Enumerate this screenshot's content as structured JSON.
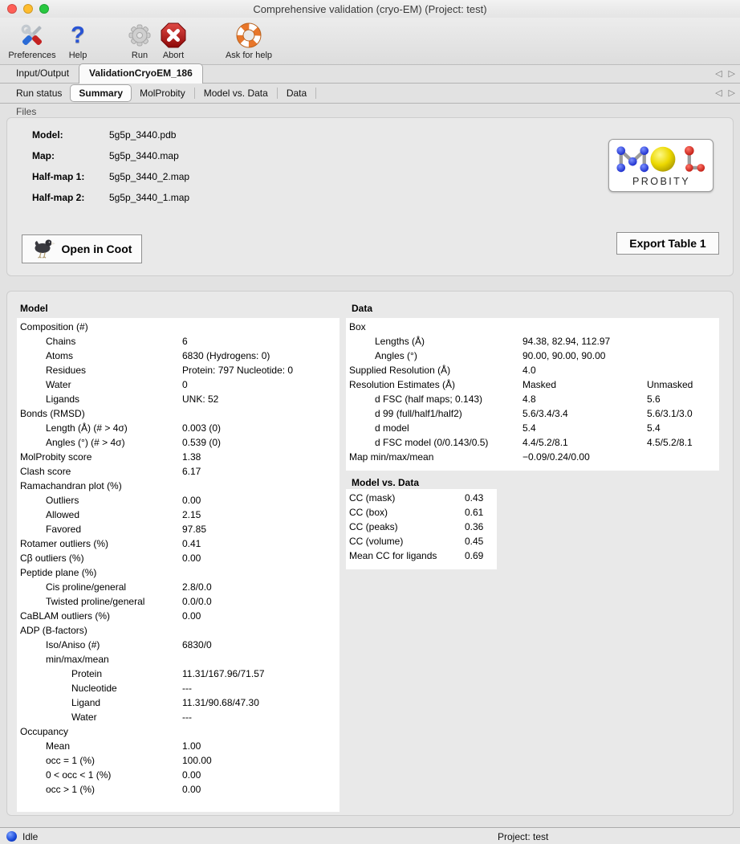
{
  "window": {
    "title": "Comprehensive validation (cryo-EM) (Project: test)"
  },
  "toolbar": {
    "items": [
      {
        "label": "Preferences",
        "icon": "tools-icon"
      },
      {
        "label": "Help",
        "icon": "question-mark-icon"
      },
      {
        "label": "Run",
        "icon": "gear-icon",
        "enabled": false
      },
      {
        "label": "Abort",
        "icon": "stop-x-icon"
      },
      {
        "label": "Ask for help",
        "icon": "lifebuoy-icon"
      }
    ]
  },
  "main_tabs": [
    {
      "label": "Input/Output",
      "selected": false
    },
    {
      "label": "ValidationCryoEM_186",
      "selected": true
    }
  ],
  "sub_tabs": [
    {
      "label": "Run status",
      "selected": false
    },
    {
      "label": "Summary",
      "selected": true
    },
    {
      "label": "MolProbity",
      "selected": false
    },
    {
      "label": "Model vs. Data",
      "selected": false
    },
    {
      "label": "Data",
      "selected": false
    }
  ],
  "tab_scroll": {
    "left": "◁",
    "right": "▷"
  },
  "files": {
    "label": "Files",
    "rows": [
      {
        "label": "Model:",
        "value": "5g5p_3440.pdb"
      },
      {
        "label": "Map:",
        "value": "5g5p_3440.map"
      },
      {
        "label": "Half-map 1:",
        "value": "5g5p_3440_2.map"
      },
      {
        "label": "Half-map 2:",
        "value": "5g5p_3440_1.map"
      }
    ],
    "open_in_coot_label": "Open in Coot",
    "export_table_label": "Export Table 1",
    "molprobity_logo_text": "PROBITY"
  },
  "model_section": {
    "title": "Model",
    "rows": [
      {
        "indent": 0,
        "label": "Composition (#)"
      },
      {
        "indent": 1,
        "label": "Chains",
        "value": "6"
      },
      {
        "indent": 1,
        "label": "Atoms",
        "value": "6830 (Hydrogens: 0)"
      },
      {
        "indent": 1,
        "label": "Residues",
        "value": "Protein: 797 Nucleotide: 0"
      },
      {
        "indent": 1,
        "label": "Water",
        "value": "0"
      },
      {
        "indent": 1,
        "label": "Ligands",
        "value": "UNK: 52"
      },
      {
        "indent": 0,
        "label": "Bonds (RMSD)"
      },
      {
        "indent": 1,
        "label": "Length (Å) (# > 4σ)",
        "value": "0.003 (0)"
      },
      {
        "indent": 1,
        "label": "Angles (°) (# > 4σ)",
        "value": "0.539 (0)"
      },
      {
        "indent": 0,
        "label": "MolProbity score",
        "value": "1.38"
      },
      {
        "indent": 0,
        "label": "Clash score",
        "value": "6.17"
      },
      {
        "indent": 0,
        "label": "Ramachandran plot (%)"
      },
      {
        "indent": 1,
        "label": "Outliers",
        "value": "0.00"
      },
      {
        "indent": 1,
        "label": "Allowed",
        "value": "2.15"
      },
      {
        "indent": 1,
        "label": "Favored",
        "value": "97.85"
      },
      {
        "indent": 0,
        "label": "Rotamer outliers (%)",
        "value": "0.41"
      },
      {
        "indent": 0,
        "label": "Cβ outliers (%)",
        "value": "0.00"
      },
      {
        "indent": 0,
        "label": "Peptide plane (%)"
      },
      {
        "indent": 1,
        "label": "Cis proline/general",
        "value": "2.8/0.0"
      },
      {
        "indent": 1,
        "label": "Twisted proline/general",
        "value": "0.0/0.0"
      },
      {
        "indent": 0,
        "label": "CaBLAM outliers (%)",
        "value": "0.00"
      },
      {
        "indent": 0,
        "label": "ADP (B-factors)"
      },
      {
        "indent": 1,
        "label": "Iso/Aniso (#)",
        "value": "6830/0"
      },
      {
        "indent": 1,
        "label": "min/max/mean"
      },
      {
        "indent": 2,
        "label": "Protein",
        "value": "11.31/167.96/71.57"
      },
      {
        "indent": 2,
        "label": "Nucleotide",
        "value": "---"
      },
      {
        "indent": 2,
        "label": "Ligand",
        "value": "11.31/90.68/47.30"
      },
      {
        "indent": 2,
        "label": "Water",
        "value": "---"
      },
      {
        "indent": 0,
        "label": "Occupancy"
      },
      {
        "indent": 1,
        "label": "Mean",
        "value": "1.00"
      },
      {
        "indent": 1,
        "label": "occ = 1 (%)",
        "value": "100.00"
      },
      {
        "indent": 1,
        "label": "0 < occ < 1 (%)",
        "value": "0.00"
      },
      {
        "indent": 1,
        "label": "occ > 1 (%)",
        "value": "0.00"
      }
    ]
  },
  "data_section": {
    "title": "Data",
    "rows": [
      {
        "indent": 0,
        "label": "Box"
      },
      {
        "indent": 1,
        "label": "Lengths (Å)",
        "value": "94.38, 82.94, 112.97"
      },
      {
        "indent": 1,
        "label": "Angles (°)",
        "value": "90.00, 90.00, 90.00"
      },
      {
        "indent": 0,
        "label": "Supplied Resolution (Å)",
        "value": "4.0"
      },
      {
        "indent": 0,
        "label": "Resolution Estimates (Å)",
        "value": "Masked",
        "value2": "Unmasked"
      },
      {
        "indent": 1,
        "label": "d FSC (half maps; 0.143)",
        "value": "4.8",
        "value2": "5.6"
      },
      {
        "indent": 1,
        "label": "d 99 (full/half1/half2)",
        "value": "5.6/3.4/3.4",
        "value2": "5.6/3.1/3.0"
      },
      {
        "indent": 1,
        "label": "d model",
        "value": "5.4",
        "value2": "5.4"
      },
      {
        "indent": 1,
        "label": "d FSC model (0/0.143/0.5)",
        "value": "4.4/5.2/8.1",
        "value2": "4.5/5.2/8.1"
      },
      {
        "indent": 0,
        "label": "Map min/max/mean",
        "value": "−0.09/0.24/0.00"
      }
    ]
  },
  "model_vs_data": {
    "title": "Model vs. Data",
    "rows": [
      {
        "indent": 0,
        "label": "CC (mask)",
        "value": "0.43"
      },
      {
        "indent": 0,
        "label": "CC (box)",
        "value": "0.61"
      },
      {
        "indent": 0,
        "label": "CC (peaks)",
        "value": "0.36"
      },
      {
        "indent": 0,
        "label": "CC (volume)",
        "value": "0.45"
      },
      {
        "indent": 0,
        "label": "Mean CC for ligands",
        "value": "0.69"
      }
    ]
  },
  "status_bar": {
    "status": "Idle",
    "project": "Project: test"
  },
  "colors": {
    "abort_red": "#b50f0f",
    "help_blue": "#2a55d4",
    "lifebuoy_orange": "#e8762a",
    "molprobity_blue": "#1b2fd4",
    "molprobity_yellow": "#e8d800",
    "molprobity_red": "#d42015",
    "status_sphere_blue": "#1747d8"
  }
}
